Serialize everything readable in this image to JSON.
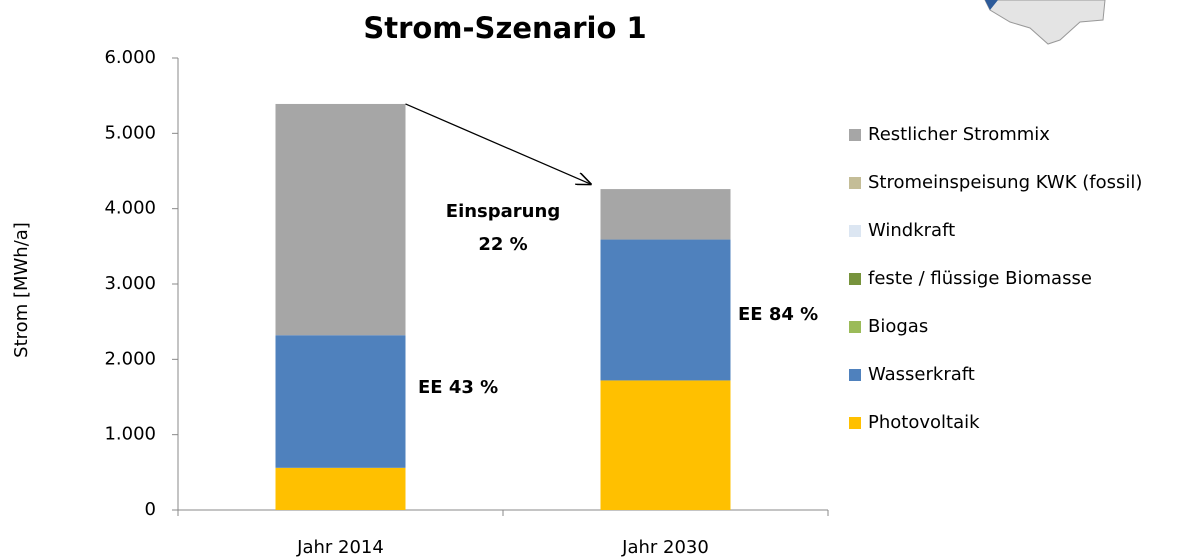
{
  "chart_data": {
    "type": "stacked_bar",
    "title": "Strom-Szenario 1",
    "y_label": "Strom [MWh/a]",
    "categories": [
      "Jahr 2014",
      "Jahr 2030"
    ],
    "series": [
      {
        "name": "Photovoltaik",
        "color": "#ffc000",
        "values": [
          560,
          1720
        ]
      },
      {
        "name": "Wasserkraft",
        "color": "#4f81bd",
        "values": [
          1760,
          1870
        ]
      },
      {
        "name": "Biogas",
        "color": "#9bbb59",
        "values": [
          0,
          0
        ]
      },
      {
        "name": "feste / flüssige Biomasse",
        "color": "#77933c",
        "values": [
          0,
          0
        ]
      },
      {
        "name": "Windkraft",
        "color": "#dce6f2",
        "values": [
          0,
          0
        ]
      },
      {
        "name": "Stromeinspeisung KWK (fossil)",
        "color": "#c4bd97",
        "values": [
          0,
          0
        ]
      },
      {
        "name": "Restlicher Strommix",
        "color": "#a6a6a6",
        "values": [
          3070,
          670
        ]
      }
    ],
    "ylim": [
      0,
      6000
    ],
    "yticks": [
      0,
      {
        "value": 1000,
        "label": "1.000"
      },
      {
        "value": 2000,
        "label": "2.000"
      },
      {
        "value": 3000,
        "label": "3.000"
      },
      {
        "value": 4000,
        "label": "4.000"
      },
      {
        "value": 5000,
        "label": "5.000"
      },
      {
        "value": 6000,
        "label": "6.000"
      }
    ],
    "annotations": [
      "Einsparung",
      "22 %",
      "EE 43 %",
      "EE 84 %"
    ],
    "legend": "right"
  }
}
